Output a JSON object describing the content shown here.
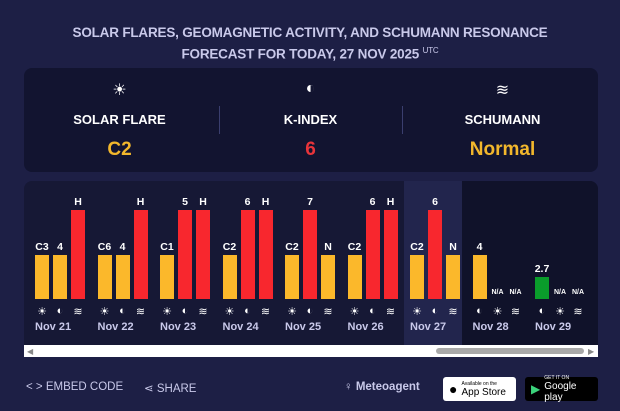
{
  "header": {
    "title_line1": "SOLAR FLARES, GEOMAGNETIC ACTIVITY, AND SCHUMANN RESONANCE",
    "title_line2": "FORECAST FOR TODAY, 27 NOV 2025",
    "utc": "UTC"
  },
  "summary": [
    {
      "icon": "sun-icon",
      "label": "SOLAR FLARE",
      "value": "C2",
      "color": "#f2b72c"
    },
    {
      "icon": "moon-icon",
      "label": "K-INDEX",
      "value": "6",
      "color": "#e8343a"
    },
    {
      "icon": "wave-icon",
      "label": "SCHUMANN",
      "value": "Normal",
      "color": "#f2b72c"
    }
  ],
  "colors": {
    "yellow": "#fbb82b",
    "red": "#f8272e",
    "green": "#0a9c2b"
  },
  "days": [
    {
      "date": "Nov 21",
      "bars": [
        {
          "type": "sun",
          "label": "C3",
          "level": "mid",
          "color": "yellow"
        },
        {
          "type": "moon",
          "label": "4",
          "level": "mid",
          "color": "yellow"
        },
        {
          "type": "wave",
          "label": "H",
          "level": "high",
          "color": "red"
        }
      ]
    },
    {
      "date": "Nov 22",
      "bars": [
        {
          "type": "sun",
          "label": "C6",
          "level": "mid",
          "color": "yellow"
        },
        {
          "type": "moon",
          "label": "4",
          "level": "mid",
          "color": "yellow"
        },
        {
          "type": "wave",
          "label": "H",
          "level": "high",
          "color": "red"
        }
      ]
    },
    {
      "date": "Nov 23",
      "bars": [
        {
          "type": "sun",
          "label": "C1",
          "level": "mid",
          "color": "yellow"
        },
        {
          "type": "moon",
          "label": "5",
          "level": "high",
          "color": "red"
        },
        {
          "type": "wave",
          "label": "H",
          "level": "high",
          "color": "red"
        }
      ]
    },
    {
      "date": "Nov 24",
      "bars": [
        {
          "type": "sun",
          "label": "C2",
          "level": "mid",
          "color": "yellow"
        },
        {
          "type": "moon",
          "label": "6",
          "level": "high",
          "color": "red"
        },
        {
          "type": "wave",
          "label": "H",
          "level": "high",
          "color": "red"
        }
      ]
    },
    {
      "date": "Nov 25",
      "bars": [
        {
          "type": "sun",
          "label": "C2",
          "level": "mid",
          "color": "yellow"
        },
        {
          "type": "moon",
          "label": "7",
          "level": "high",
          "color": "red"
        },
        {
          "type": "wave",
          "label": "N",
          "level": "mid",
          "color": "yellow"
        }
      ]
    },
    {
      "date": "Nov 26",
      "bars": [
        {
          "type": "sun",
          "label": "C2",
          "level": "mid",
          "color": "yellow"
        },
        {
          "type": "moon",
          "label": "6",
          "level": "high",
          "color": "red"
        },
        {
          "type": "wave",
          "label": "H",
          "level": "high",
          "color": "red"
        }
      ]
    },
    {
      "date": "Nov 27",
      "bars": [
        {
          "type": "sun",
          "label": "C2",
          "level": "mid",
          "color": "yellow"
        },
        {
          "type": "moon",
          "label": "6",
          "level": "high",
          "color": "red"
        },
        {
          "type": "wave",
          "label": "N",
          "level": "mid",
          "color": "yellow"
        }
      ]
    },
    {
      "date": "Nov 28",
      "bars": [
        {
          "type": "moon",
          "label": "4",
          "level": "mid",
          "color": "yellow"
        },
        {
          "type": "sun",
          "label": "N/A",
          "level": "none",
          "color": ""
        },
        {
          "type": "wave",
          "label": "N/A",
          "level": "none",
          "color": ""
        }
      ]
    },
    {
      "date": "Nov 29",
      "bars": [
        {
          "type": "moon",
          "label": "2.7",
          "level": "low",
          "color": "green"
        },
        {
          "type": "sun",
          "label": "N/A",
          "level": "none",
          "color": ""
        },
        {
          "type": "wave",
          "label": "N/A",
          "level": "none",
          "color": ""
        }
      ]
    }
  ],
  "footer": {
    "embed": "EMBED CODE",
    "share": "SHARE",
    "brand": "Meteoagent",
    "appstore_small": "Available on the",
    "appstore": "App Store",
    "gplay_small": "GET IT ON",
    "gplay": "Google play"
  }
}
